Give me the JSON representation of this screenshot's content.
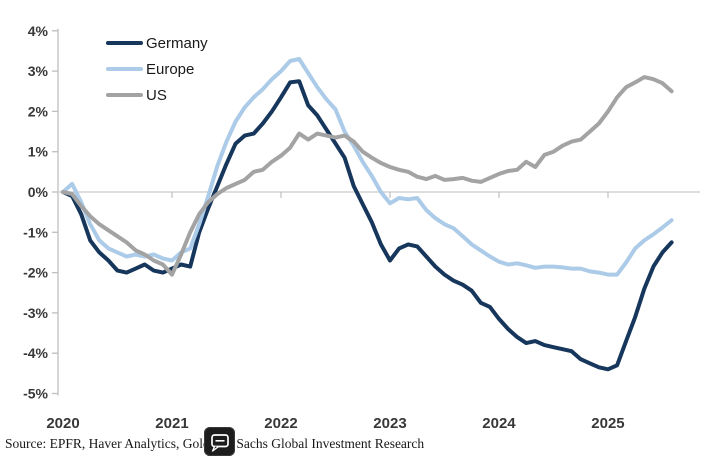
{
  "chart_data": {
    "type": "line",
    "title": "",
    "categories": [
      "2020-01",
      "2020-02",
      "2020-03",
      "2020-04",
      "2020-05",
      "2020-06",
      "2020-07",
      "2020-08",
      "2020-09",
      "2020-10",
      "2020-11",
      "2020-12",
      "2021-01",
      "2021-02",
      "2021-03",
      "2021-04",
      "2021-05",
      "2021-06",
      "2021-07",
      "2021-08",
      "2021-09",
      "2021-10",
      "2021-11",
      "2021-12",
      "2022-01",
      "2022-02",
      "2022-03",
      "2022-04",
      "2022-05",
      "2022-06",
      "2022-07",
      "2022-08",
      "2022-09",
      "2022-10",
      "2022-11",
      "2022-12",
      "2023-01",
      "2023-02",
      "2023-03",
      "2023-04",
      "2023-05",
      "2023-06",
      "2023-07",
      "2023-08",
      "2023-09",
      "2023-10",
      "2023-11",
      "2023-12",
      "2024-01",
      "2024-02",
      "2024-03",
      "2024-04",
      "2024-05",
      "2024-06",
      "2024-07",
      "2024-08",
      "2024-09",
      "2024-10",
      "2024-11",
      "2024-12",
      "2025-01",
      "2025-02",
      "2025-03",
      "2025-04",
      "2025-05",
      "2025-06",
      "2025-07",
      "2025-08"
    ],
    "series": [
      {
        "name": "Germany",
        "color": "#16365c",
        "values": [
          0.0,
          -0.1,
          -0.55,
          -1.2,
          -1.5,
          -1.7,
          -1.95,
          -2.0,
          -1.9,
          -1.8,
          -1.95,
          -2.0,
          -1.9,
          -1.8,
          -1.85,
          -1.0,
          -0.4,
          0.15,
          0.7,
          1.2,
          1.4,
          1.45,
          1.7,
          2.0,
          2.35,
          2.72,
          2.75,
          2.15,
          1.9,
          1.55,
          1.2,
          0.85,
          0.15,
          -0.3,
          -0.75,
          -1.3,
          -1.7,
          -1.4,
          -1.3,
          -1.35,
          -1.6,
          -1.85,
          -2.05,
          -2.2,
          -2.3,
          -2.45,
          -2.75,
          -2.85,
          -3.15,
          -3.4,
          -3.6,
          -3.75,
          -3.7,
          -3.8,
          -3.85,
          -3.9,
          -3.95,
          -4.15,
          -4.25,
          -4.35,
          -4.4,
          -4.3,
          -3.7,
          -3.1,
          -2.4,
          -1.85,
          -1.5,
          -1.25
        ]
      },
      {
        "name": "Europe",
        "color": "#abcbe8",
        "values": [
          0.0,
          0.2,
          -0.25,
          -0.8,
          -1.2,
          -1.4,
          -1.5,
          -1.6,
          -1.55,
          -1.6,
          -1.55,
          -1.65,
          -1.7,
          -1.5,
          -1.4,
          -0.8,
          -0.1,
          0.65,
          1.25,
          1.75,
          2.1,
          2.35,
          2.55,
          2.8,
          3.0,
          3.25,
          3.3,
          2.95,
          2.6,
          2.3,
          2.05,
          1.5,
          1.15,
          0.75,
          0.4,
          0.0,
          -0.28,
          -0.15,
          -0.18,
          -0.15,
          -0.45,
          -0.65,
          -0.8,
          -0.9,
          -1.1,
          -1.3,
          -1.45,
          -1.6,
          -1.73,
          -1.8,
          -1.77,
          -1.82,
          -1.88,
          -1.85,
          -1.85,
          -1.87,
          -1.9,
          -1.9,
          -1.97,
          -2.0,
          -2.05,
          -2.05,
          -1.75,
          -1.4,
          -1.2,
          -1.05,
          -0.88,
          -0.7
        ]
      },
      {
        "name": "US",
        "color": "#a3a3a3",
        "values": [
          0.0,
          -0.05,
          -0.35,
          -0.6,
          -0.8,
          -0.95,
          -1.1,
          -1.25,
          -1.45,
          -1.55,
          -1.7,
          -1.8,
          -2.05,
          -1.55,
          -1.0,
          -0.55,
          -0.25,
          -0.05,
          0.1,
          0.2,
          0.3,
          0.5,
          0.55,
          0.75,
          0.9,
          1.1,
          1.45,
          1.3,
          1.45,
          1.4,
          1.35,
          1.4,
          1.25,
          1.0,
          0.85,
          0.72,
          0.62,
          0.55,
          0.5,
          0.38,
          0.32,
          0.4,
          0.3,
          0.32,
          0.35,
          0.28,
          0.25,
          0.35,
          0.45,
          0.52,
          0.55,
          0.75,
          0.62,
          0.92,
          1.0,
          1.15,
          1.25,
          1.3,
          1.5,
          1.7,
          2.0,
          2.35,
          2.6,
          2.72,
          2.85,
          2.8,
          2.7,
          2.5
        ]
      }
    ],
    "ylim": [
      -5,
      4
    ],
    "yticks": [
      4,
      3,
      2,
      1,
      0,
      -1,
      -2,
      -3,
      -4,
      -5
    ],
    "ytick_labels": [
      "4%",
      "3%",
      "2%",
      "1%",
      "0%",
      "-1%",
      "-2%",
      "-3%",
      "-4%",
      "-5%"
    ],
    "xtick_labels": [
      "2020",
      "2021",
      "2022",
      "2023",
      "2024",
      "2025"
    ],
    "grid": "zero-line-only",
    "legend_position": "top-left",
    "axis_color": "#bfbfbf",
    "zero_line_color": "#c9c9c9"
  },
  "legend": {
    "items": [
      {
        "label": "Germany"
      },
      {
        "label": "Europe"
      },
      {
        "label": "US"
      }
    ]
  },
  "source": {
    "text": "Source: EPFR, Haver Analytics, Goldman Sachs Global Investment Research"
  },
  "overlay_icon": {
    "name": "comment-icon",
    "background": "#1d1d1d"
  }
}
